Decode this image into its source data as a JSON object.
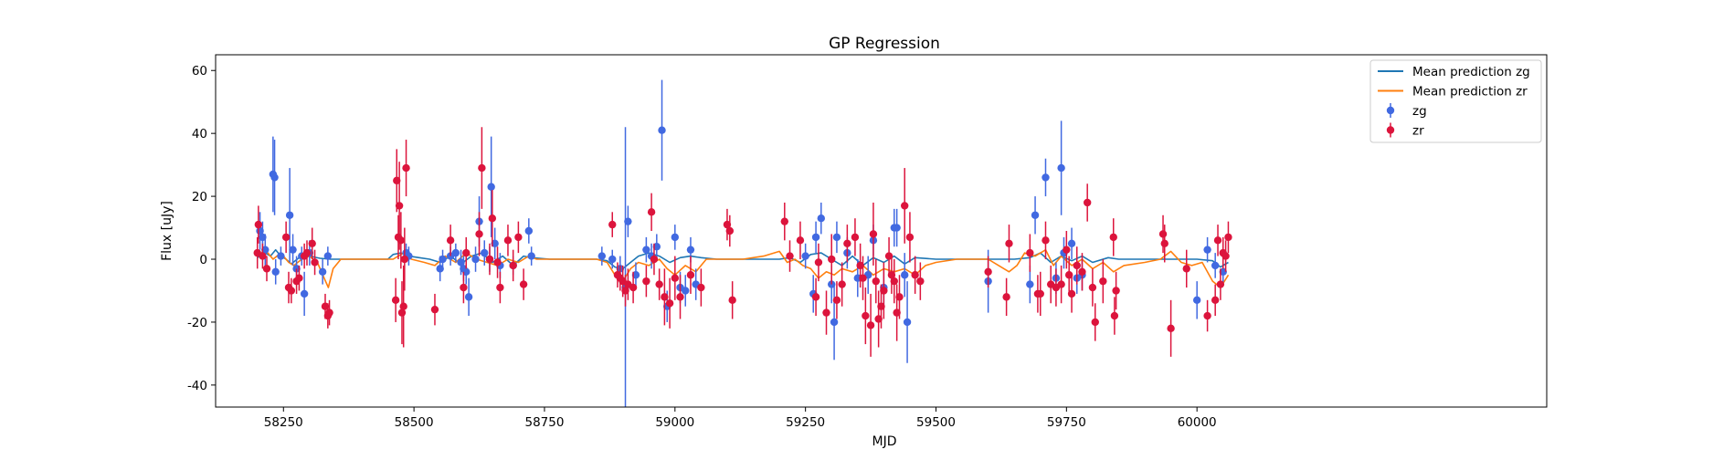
{
  "chart_data": {
    "type": "scatter",
    "title": "GP Regression",
    "xlabel": "MJD",
    "ylabel": "Flux [uJy]",
    "xlim": [
      58120,
      60670
    ],
    "ylim": [
      -47,
      65
    ],
    "xticks": [
      58250,
      58500,
      58750,
      59000,
      59250,
      59500,
      59750,
      60000
    ],
    "yticks": [
      -40,
      -20,
      0,
      20,
      40,
      60
    ],
    "grid": false,
    "legend_position": "top-right",
    "legend": [
      {
        "label": "Mean prediction zg",
        "kind": "line",
        "color": "#1f77b4"
      },
      {
        "label": "Mean prediction zr",
        "kind": "line",
        "color": "#ff7f0e"
      },
      {
        "label": "zg",
        "kind": "errorbar",
        "color": "#4169e1"
      },
      {
        "label": "zr",
        "kind": "errorbar",
        "color": "#dc143c"
      }
    ],
    "series": [
      {
        "name": "Mean prediction zg",
        "kind": "line",
        "color": "#1f77b4",
        "x": [
          58200,
          58215,
          58225,
          58235,
          58245,
          58255,
          58265,
          58280,
          58300,
          58320,
          58340,
          58360,
          58400,
          58450,
          58460,
          58475,
          58490,
          58510,
          58530,
          58550,
          58570,
          58590,
          58610,
          58630,
          58650,
          58670,
          58690,
          58710,
          58725,
          58760,
          58800,
          58850,
          58870,
          58885,
          58900,
          58915,
          58930,
          58950,
          58970,
          58990,
          59010,
          59030,
          59050,
          59080,
          59120,
          59200,
          59220,
          59240,
          59260,
          59280,
          59300,
          59320,
          59340,
          59360,
          59380,
          59400,
          59420,
          59440,
          59460,
          59500,
          59550,
          59600,
          59620,
          59650,
          59680,
          59700,
          59720,
          59740,
          59760,
          59780,
          59800,
          59830,
          59850,
          59900,
          59950,
          60000,
          60030,
          60045,
          60060
        ],
        "y": [
          0.5,
          2,
          1,
          3,
          1,
          0,
          -1.5,
          0.5,
          1,
          0.3,
          0,
          0,
          0,
          0,
          1.5,
          2,
          1,
          0.5,
          0,
          -1,
          1,
          -1.5,
          1,
          2,
          -1,
          1,
          -2,
          1,
          0.5,
          0,
          0,
          0,
          -0.5,
          -2.5,
          -3,
          -1,
          1,
          2,
          1,
          -1,
          0.5,
          1,
          0.5,
          0,
          0,
          0,
          0.5,
          -1,
          1.5,
          2,
          0,
          -2,
          1,
          -2,
          0.5,
          -1,
          1,
          -1.5,
          0.5,
          0,
          0,
          0,
          0,
          0,
          0.5,
          2,
          -1,
          1,
          -0.5,
          1,
          -1,
          0.5,
          0,
          0,
          0,
          0,
          -0.5,
          -2.5,
          -1
        ]
      },
      {
        "name": "Mean prediction zr",
        "kind": "line",
        "color": "#ff7f0e",
        "x": [
          58200,
          58215,
          58230,
          58245,
          58260,
          58270,
          58285,
          58300,
          58315,
          58328,
          58336,
          58345,
          58360,
          58380,
          58420,
          58460,
          58470,
          58480,
          58495,
          58520,
          58540,
          58560,
          58580,
          58600,
          58620,
          58640,
          58660,
          58680,
          58700,
          58720,
          58735,
          58760,
          58800,
          58850,
          58870,
          58885,
          58900,
          58915,
          58930,
          58950,
          58970,
          58985,
          59000,
          59020,
          59040,
          59060,
          59080,
          59100,
          59130,
          59170,
          59200,
          59215,
          59230,
          59245,
          59260,
          59275,
          59290,
          59305,
          59320,
          59340,
          59360,
          59380,
          59400,
          59420,
          59440,
          59460,
          59480,
          59500,
          59540,
          59580,
          59600,
          59620,
          59640,
          59655,
          59670,
          59690,
          59710,
          59725,
          59740,
          59760,
          59780,
          59800,
          59820,
          59840,
          59860,
          59900,
          59930,
          59950,
          59970,
          59990,
          60010,
          60030,
          60045,
          60060
        ],
        "y": [
          1,
          3,
          0,
          2,
          -1,
          -2,
          0,
          1,
          -1,
          -6,
          -9,
          -3,
          0,
          0,
          0,
          0,
          1,
          2,
          0,
          -1,
          -2,
          1,
          -1,
          2,
          0,
          -1,
          -2,
          0,
          -1,
          1,
          0,
          0,
          0,
          0,
          -1,
          -5,
          -7,
          -3,
          -1,
          -2,
          0,
          -3,
          -5,
          -2,
          -4,
          0,
          0,
          0,
          0,
          1,
          2.5,
          -1,
          0,
          -2,
          -3,
          -6,
          -4,
          -5,
          -3,
          -4,
          -2,
          -5,
          -3,
          -4,
          -3,
          -5,
          -2,
          -1,
          0,
          0,
          0,
          -2,
          -4,
          -2,
          2,
          1,
          3,
          -2,
          1,
          -2,
          0,
          -3,
          -1,
          -4,
          -2,
          -1,
          0,
          2.5,
          -1,
          -2,
          -1,
          -7,
          -9,
          -5
        ]
      },
      {
        "name": "zg",
        "kind": "errorbar",
        "color": "#4169e1",
        "x": [
          58205,
          58210,
          58215,
          58230,
          58233,
          58235,
          58245,
          58262,
          58268,
          58275,
          58285,
          58290,
          58300,
          58325,
          58335,
          58485,
          58490,
          58550,
          58555,
          58570,
          58580,
          58590,
          58595,
          58600,
          58605,
          58618,
          58625,
          58635,
          58645,
          58648,
          58655,
          58665,
          58690,
          58720,
          58725,
          58860,
          58880,
          58895,
          58905,
          58910,
          58925,
          58945,
          58955,
          58965,
          58975,
          58985,
          59000,
          59010,
          59020,
          59030,
          59040,
          59250,
          59265,
          59270,
          59280,
          59300,
          59305,
          59310,
          59330,
          59350,
          59370,
          59380,
          59400,
          59420,
          59425,
          59440,
          59445,
          59600,
          59680,
          59690,
          59710,
          59730,
          59740,
          59745,
          59760,
          59770,
          59780,
          60000,
          60020,
          60035,
          60050
        ],
        "y": [
          9,
          7,
          3,
          27,
          26,
          -4,
          1,
          14,
          3,
          -3,
          1,
          -11,
          2,
          -4,
          1,
          2,
          1,
          -3,
          0,
          1,
          2,
          -1,
          -3,
          -4,
          -12,
          0,
          12,
          2,
          0,
          23,
          5,
          -2,
          -2,
          9,
          1,
          1,
          0,
          -3,
          -9,
          12,
          -5,
          3,
          1,
          4,
          41,
          -15,
          7,
          -9,
          -10,
          3,
          -8,
          1,
          -11,
          7,
          13,
          -8,
          -20,
          7,
          2,
          -6,
          -5,
          6,
          -9,
          10,
          10,
          -5,
          -20,
          -7,
          -8,
          14,
          26,
          -6,
          29,
          2,
          5,
          -6,
          -5,
          -13,
          3,
          -2,
          -4
        ],
        "yerr": [
          6,
          5,
          5,
          12,
          12,
          4,
          3,
          15,
          5,
          4,
          3,
          7,
          4,
          4,
          3,
          3,
          3,
          4,
          3,
          3,
          3,
          4,
          4,
          4,
          6,
          4,
          8,
          4,
          4,
          16,
          5,
          4,
          3,
          4,
          3,
          3,
          3,
          4,
          51,
          5,
          4,
          4,
          4,
          4,
          16,
          5,
          4,
          5,
          5,
          4,
          5,
          4,
          6,
          5,
          5,
          6,
          12,
          5,
          5,
          6,
          6,
          5,
          6,
          6,
          6,
          7,
          13,
          10,
          6,
          6,
          6,
          5,
          15,
          5,
          5,
          5,
          5,
          6,
          4,
          4,
          4
        ]
      },
      {
        "name": "zr",
        "kind": "errorbar",
        "color": "#dc143c",
        "x": [
          58200,
          58202,
          58210,
          58218,
          58255,
          58260,
          58265,
          58275,
          58280,
          58290,
          58295,
          58305,
          58310,
          58330,
          58335,
          58338,
          58465,
          58467,
          58470,
          58472,
          58475,
          58477,
          58480,
          58482,
          58485,
          58540,
          58570,
          58595,
          58600,
          58625,
          58630,
          58645,
          58650,
          58660,
          58665,
          58680,
          58690,
          58700,
          58710,
          58880,
          58890,
          58895,
          58900,
          58905,
          58910,
          58920,
          58945,
          58955,
          58960,
          58970,
          58980,
          58990,
          59000,
          59010,
          59030,
          59050,
          59100,
          59105,
          59110,
          59210,
          59220,
          59240,
          59270,
          59275,
          59290,
          59300,
          59310,
          59320,
          59330,
          59345,
          59355,
          59360,
          59365,
          59375,
          59380,
          59385,
          59390,
          59395,
          59400,
          59410,
          59415,
          59420,
          59425,
          59430,
          59440,
          59450,
          59460,
          59470,
          59600,
          59635,
          59640,
          59680,
          59695,
          59700,
          59710,
          59720,
          59730,
          59740,
          59750,
          59755,
          59760,
          59770,
          59780,
          59790,
          59800,
          59805,
          59820,
          59840,
          59842,
          59845,
          59935,
          59938,
          59950,
          59980,
          60020,
          60035,
          60040,
          60045,
          60050,
          60055,
          60060
        ],
        "y": [
          2,
          11,
          1,
          -3,
          7,
          -9,
          -10,
          -7,
          -6,
          1,
          2,
          5,
          -1,
          -15,
          -18,
          -17,
          -13,
          25,
          7,
          17,
          6,
          -17,
          -15,
          0,
          29,
          -16,
          6,
          -9,
          2,
          8,
          29,
          0,
          13,
          -1,
          -9,
          6,
          -2,
          7,
          -8,
          11,
          -5,
          -6,
          -7,
          -10,
          -8,
          -9,
          -7,
          15,
          0,
          -8,
          -12,
          -14,
          -6,
          -12,
          -5,
          -9,
          11,
          9,
          -13,
          12,
          1,
          6,
          -12,
          -1,
          -17,
          0,
          -13,
          -8,
          5,
          7,
          -2,
          -6,
          -18,
          -21,
          8,
          -7,
          -19,
          -15,
          -10,
          1,
          -5,
          -7,
          -17,
          -12,
          17,
          7,
          -5,
          -7,
          -4,
          -12,
          5,
          2,
          -11,
          -11,
          6,
          -8,
          -9,
          -8,
          3,
          -5,
          -11,
          -2,
          -4,
          18,
          -9,
          -20,
          -7,
          7,
          -18,
          -10,
          8,
          5,
          -22,
          -3,
          -18,
          -13,
          6,
          -8,
          2,
          1,
          7
        ],
        "yerr": [
          5,
          6,
          4,
          4,
          5,
          5,
          4,
          4,
          4,
          4,
          4,
          5,
          4,
          4,
          4,
          4,
          7,
          10,
          7,
          14,
          9,
          10,
          13,
          10,
          9,
          5,
          5,
          5,
          5,
          7,
          13,
          5,
          9,
          5,
          5,
          5,
          5,
          5,
          5,
          4,
          4,
          4,
          5,
          5,
          5,
          5,
          5,
          6,
          5,
          5,
          9,
          8,
          7,
          7,
          6,
          6,
          5,
          5,
          6,
          6,
          5,
          6,
          6,
          6,
          7,
          8,
          6,
          7,
          6,
          6,
          7,
          7,
          9,
          10,
          10,
          7,
          9,
          7,
          9,
          6,
          6,
          7,
          9,
          7,
          12,
          8,
          6,
          6,
          5,
          6,
          6,
          6,
          6,
          7,
          6,
          6,
          6,
          6,
          6,
          6,
          6,
          6,
          6,
          6,
          6,
          6,
          7,
          6,
          6,
          6,
          6,
          6,
          9,
          6,
          5,
          5,
          5,
          5,
          5,
          5,
          5
        ]
      }
    ]
  }
}
